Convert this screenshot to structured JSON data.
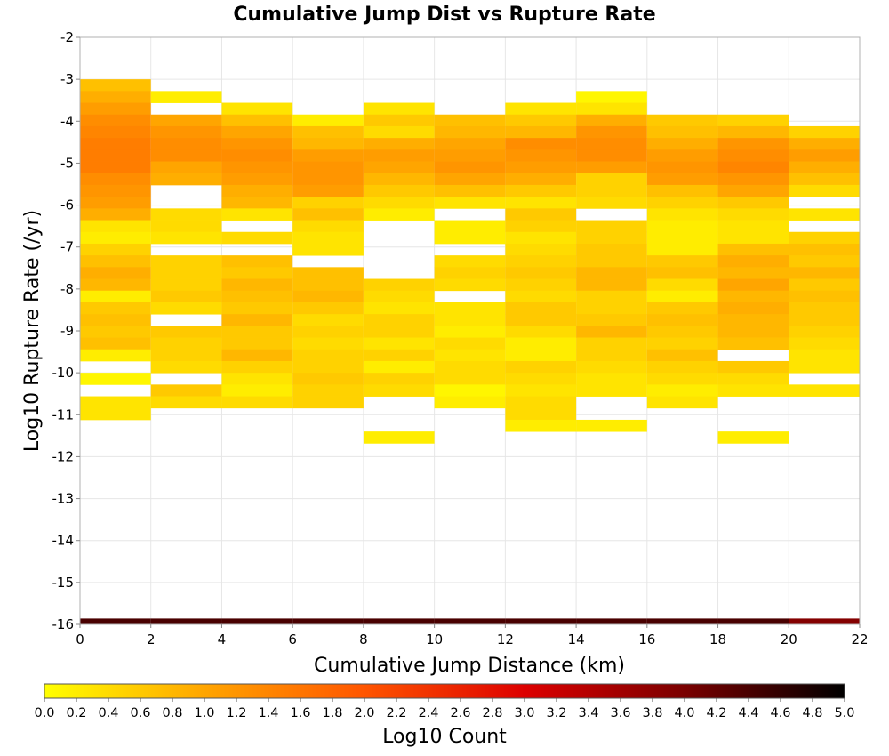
{
  "chart_data": {
    "type": "heatmap",
    "title": "Cumulative Jump Dist vs Rupture Rate",
    "xlabel": "Cumulative Jump Distance (km)",
    "ylabel": "Log10 Rupture Rate (/yr)",
    "xlim": [
      0,
      22
    ],
    "ylim": [
      -16,
      -2
    ],
    "x_ticks": [
      "0",
      "2",
      "4",
      "6",
      "8",
      "10",
      "12",
      "14",
      "16",
      "18",
      "20",
      "22"
    ],
    "y_ticks": [
      "-16",
      "-15",
      "-14",
      "-13",
      "-12",
      "-11",
      "-10",
      "-9",
      "-8",
      "-7",
      "-6",
      "-5",
      "-4",
      "-3",
      "-2"
    ],
    "grid": true,
    "x_bin_width_km": 2,
    "y_bin_width": 0.28,
    "colorbar": {
      "label": "Log10 Count",
      "range": [
        0.0,
        5.0
      ],
      "ticks": [
        "0.0",
        "0.2",
        "0.4",
        "0.6",
        "0.8",
        "1.0",
        "1.2",
        "1.4",
        "1.6",
        "1.8",
        "2.0",
        "2.2",
        "2.4",
        "2.6",
        "2.8",
        "3.0",
        "3.2",
        "3.4",
        "3.6",
        "3.8",
        "4.0",
        "4.2",
        "4.4",
        "4.6",
        "4.8",
        "5.0"
      ],
      "colormap": [
        "#ffff00",
        "#ffa500",
        "#ff5500",
        "#dd0000",
        "#7a0000",
        "#000000"
      ]
    },
    "bottom_row": {
      "y": -16,
      "log10_counts": [
        4.4,
        4.4,
        4.4,
        4.4,
        4.4,
        4.4,
        4.4,
        4.4,
        4.4,
        4.4,
        3.9
      ]
    },
    "columns": [
      {
        "x": [
          0,
          2
        ],
        "y_top": -3.0,
        "log10_counts": [
          0.7,
          0.9,
          1.1,
          1.3,
          1.4,
          1.5,
          1.5,
          1.5,
          1.3,
          1.2,
          1.1,
          0.9,
          0.3,
          0.2,
          0.5,
          0.7,
          0.9,
          0.8,
          0.2,
          0.6,
          0.7,
          0.6,
          0.7,
          0.2,
          null,
          0.1,
          null,
          0.3,
          0.3
        ]
      },
      {
        "x": [
          2,
          4
        ],
        "y_top": -3.28,
        "log10_counts": [
          0.2,
          null,
          1.0,
          1.2,
          1.3,
          1.3,
          1.0,
          0.9,
          null,
          null,
          0.4,
          0.4,
          0.3,
          null,
          0.5,
          0.5,
          0.5,
          0.6,
          0.4,
          null,
          0.6,
          0.5,
          0.5,
          0.4,
          null,
          0.6,
          0.4
        ]
      },
      {
        "x": [
          4,
          6
        ],
        "y_top": -3.56,
        "log10_counts": [
          0.3,
          0.7,
          1.0,
          1.2,
          1.3,
          1.2,
          1.1,
          0.9,
          0.8,
          0.3,
          null,
          0.4,
          null,
          0.7,
          0.6,
          0.8,
          0.7,
          0.6,
          0.8,
          0.6,
          0.6,
          0.8,
          0.5,
          0.3,
          0.2,
          0.4
        ]
      },
      {
        "x": [
          6,
          8
        ],
        "y_top": -3.84,
        "log10_counts": [
          0.2,
          0.7,
          0.8,
          1.1,
          1.2,
          1.2,
          1.1,
          0.5,
          0.7,
          0.4,
          0.3,
          0.3,
          null,
          0.7,
          0.7,
          0.8,
          0.6,
          0.4,
          0.5,
          0.4,
          0.5,
          0.5,
          0.6,
          0.5,
          0.5
        ]
      },
      {
        "x": [
          8,
          10
        ],
        "y_top": -3.56,
        "log10_counts": [
          0.3,
          0.6,
          0.4,
          0.9,
          1.1,
          1.0,
          0.8,
          0.6,
          0.4,
          0.2,
          null,
          null,
          null,
          null,
          null,
          0.5,
          0.4,
          0.3,
          0.5,
          0.5,
          0.3,
          0.5,
          0.2,
          0.5,
          0.4,
          null,
          null,
          null,
          0.2
        ]
      },
      {
        "x": [
          10,
          12
        ],
        "y_top": -3.84,
        "log10_counts": [
          0.7,
          0.8,
          1.0,
          1.1,
          1.2,
          1.0,
          0.7,
          0.3,
          null,
          0.2,
          0.2,
          null,
          0.4,
          0.5,
          0.4,
          null,
          0.3,
          0.3,
          0.2,
          0.4,
          0.3,
          0.4,
          0.4,
          0.1,
          0.2
        ]
      },
      {
        "x": [
          12,
          14
        ],
        "y_top": -3.56,
        "log10_counts": [
          0.3,
          0.6,
          0.8,
          1.3,
          1.2,
          1.1,
          0.9,
          0.6,
          0.3,
          0.6,
          0.5,
          0.3,
          0.4,
          0.5,
          0.6,
          0.5,
          0.4,
          0.6,
          0.6,
          0.4,
          0.2,
          0.2,
          0.5,
          0.4,
          0.3,
          0.4,
          0.4,
          0.2
        ]
      },
      {
        "x": [
          14,
          16
        ],
        "y_top": -3.28,
        "log10_counts": [
          0.1,
          0.3,
          0.9,
          1.2,
          1.3,
          1.3,
          1.1,
          0.5,
          0.5,
          0.4,
          null,
          0.5,
          0.5,
          0.6,
          0.6,
          0.8,
          0.8,
          0.5,
          0.5,
          0.6,
          0.8,
          0.5,
          0.5,
          0.4,
          0.3,
          0.3,
          null,
          null,
          0.2
        ]
      },
      {
        "x": [
          16,
          18
        ],
        "y_top": -3.84,
        "log10_counts": [
          0.6,
          0.7,
          0.9,
          1.1,
          1.2,
          1.1,
          0.7,
          0.5,
          0.3,
          0.2,
          0.2,
          0.2,
          0.6,
          0.7,
          0.4,
          0.2,
          0.6,
          0.7,
          0.6,
          0.5,
          0.7,
          0.5,
          0.4,
          0.2,
          0.3
        ]
      },
      {
        "x": [
          18,
          20
        ],
        "y_top": -3.84,
        "log10_counts": [
          0.5,
          0.8,
          1.2,
          1.3,
          1.4,
          1.2,
          1.0,
          0.6,
          0.4,
          0.3,
          0.3,
          0.7,
          0.9,
          0.8,
          1.0,
          0.8,
          0.9,
          0.8,
          0.8,
          0.7,
          null,
          0.6,
          0.4,
          0.3,
          null,
          null,
          null,
          0.2
        ]
      },
      {
        "x": [
          20,
          22
        ],
        "y_top": -4.12,
        "log10_counts": [
          0.5,
          0.9,
          1.1,
          0.9,
          0.7,
          0.4,
          null,
          0.3,
          null,
          0.5,
          0.7,
          0.6,
          0.8,
          0.6,
          0.7,
          0.6,
          0.6,
          0.5,
          0.4,
          0.3,
          0.3,
          null,
          0.3
        ]
      }
    ]
  }
}
